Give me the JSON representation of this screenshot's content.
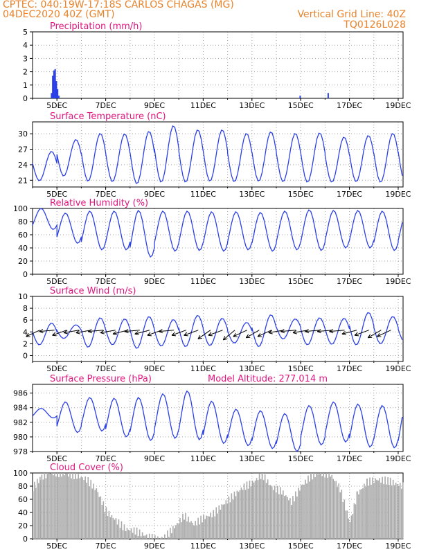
{
  "header": {
    "line1": "CPTEC:   040:19W-17:18S   CARLOS CHAGAS (MG)",
    "line2": "04DEC2020 40Z (GMT)",
    "grid_note": "Vertical Grid Line: 40Z",
    "code": "TQ0126L028"
  },
  "colors": {
    "header": "#e8822a",
    "title": "#e0157f",
    "line": "#2a3fe6",
    "cloud": "#a9a9a9",
    "arrow": "#000000"
  },
  "chart_data": [
    {
      "id": "precip",
      "type": "bar",
      "title": "Precipitation (mm/h)",
      "ylim": [
        0,
        5
      ],
      "yticks": [
        0,
        1,
        2,
        3,
        4,
        5
      ],
      "xlabels": [
        "5DEC",
        "7DEC",
        "9DEC",
        "11DEC",
        "13DEC",
        "15DEC",
        "17DEC",
        "19DEC"
      ],
      "x_range_days": [
        4.0,
        19.2
      ],
      "series": [
        {
          "values": [
            [
              4.75,
              0.4
            ],
            [
              4.8,
              1.7
            ],
            [
              4.85,
              2.1
            ],
            [
              4.9,
              2.2
            ],
            [
              4.95,
              1.3
            ],
            [
              5.0,
              0.7
            ],
            [
              5.05,
              0.2
            ],
            [
              14.95,
              0.2
            ],
            [
              16.1,
              0.4
            ]
          ]
        }
      ]
    },
    {
      "id": "temp",
      "type": "line",
      "title": "Surface Temperature (nC)",
      "ylim": [
        19.7,
        32.3
      ],
      "yticks": [
        21,
        24,
        27,
        30
      ],
      "xlabels": [
        "5DEC",
        "7DEC",
        "9DEC",
        "11DEC",
        "13DEC",
        "15DEC",
        "17DEC",
        "19DEC"
      ],
      "x_range_days": [
        4.0,
        19.2
      ],
      "series": [
        {
          "min": [
            20.9,
            21.8,
            20.8,
            20.7,
            20.3,
            20.6,
            20.6,
            20.8,
            20.7,
            20.8,
            20.7,
            20.6,
            20.6,
            20.7,
            20.6,
            20.7
          ],
          "max": [
            26.6,
            28.9,
            30.1,
            30.0,
            30.5,
            31.6,
            30.8,
            30.8,
            30.1,
            30.4,
            30.1,
            30.2,
            29.4,
            29.7,
            30.1,
            30.5
          ]
        }
      ]
    },
    {
      "id": "rh",
      "type": "line",
      "title": "Relative Humidity (%)",
      "ylim": [
        0,
        100
      ],
      "yticks": [
        0,
        20,
        40,
        60,
        80,
        100
      ],
      "xlabels": [
        "5DEC",
        "7DEC",
        "9DEC",
        "11DEC",
        "13DEC",
        "15DEC",
        "17DEC",
        "19DEC"
      ],
      "x_range_days": [
        4.0,
        19.2
      ],
      "series": [
        {
          "max": [
            100,
            93,
            96,
            96,
            97,
            96,
            96,
            95,
            95,
            94,
            96,
            98,
            97,
            97,
            96,
            95
          ],
          "min": [
            68,
            47,
            37,
            37,
            26,
            35,
            36,
            35,
            37,
            35,
            37,
            36,
            40,
            40,
            36,
            40
          ]
        }
      ]
    },
    {
      "id": "wind",
      "type": "line",
      "title": "Surface Wind (m/s)",
      "ylim": [
        -1,
        10
      ],
      "yticks": [
        0,
        2,
        4,
        6,
        8,
        10
      ],
      "xlabels": [
        "5DEC",
        "7DEC",
        "9DEC",
        "11DEC",
        "13DEC",
        "15DEC",
        "17DEC",
        "19DEC"
      ],
      "x_range_days": [
        4.0,
        19.2
      ],
      "series": [
        {
          "max": [
            5.5,
            5.2,
            6.4,
            6.2,
            6.6,
            6.1,
            6.8,
            6.3,
            5.6,
            6.9,
            6.2,
            6.4,
            6.3,
            7.3,
            6.6,
            6.0
          ],
          "min": [
            1.8,
            2.9,
            1.4,
            1.8,
            1.2,
            1.6,
            1.5,
            1.7,
            2.1,
            1.5,
            2.8,
            1.8,
            1.9,
            1.8,
            2.0,
            2.2
          ]
        }
      ]
    },
    {
      "id": "pres",
      "type": "line",
      "title": "Surface Pressure (hPa)",
      "subtitle": "Model Altitude: 277.014 m",
      "ylim": [
        978,
        987.2
      ],
      "yticks": [
        978,
        980,
        982,
        984,
        986
      ],
      "xlabels": [
        "5DEC",
        "7DEC",
        "9DEC",
        "11DEC",
        "13DEC",
        "15DEC",
        "17DEC",
        "19DEC"
      ],
      "x_range_days": [
        4.0,
        19.2
      ],
      "series": [
        {
          "max": [
            983.9,
            984.8,
            985.4,
            985.3,
            985.4,
            985.9,
            986.3,
            984.9,
            983.8,
            983.6,
            983.2,
            984.3,
            984.8,
            984.5,
            984.3,
            984.7
          ],
          "min": [
            982.6,
            980.6,
            980.8,
            980.0,
            979.5,
            979.8,
            979.6,
            979.1,
            978.8,
            978.4,
            978.0,
            978.9,
            979.3,
            978.6,
            978.5,
            978.1
          ]
        }
      ]
    },
    {
      "id": "cloud",
      "type": "bar",
      "title": "Cloud Cover (%)",
      "ylim": [
        0,
        100
      ],
      "yticks": [
        0,
        20,
        40,
        60,
        80,
        100
      ],
      "xlabels": [
        "5DEC",
        "7DEC",
        "9DEC",
        "11DEC",
        "13DEC",
        "15DEC",
        "17DEC",
        "19DEC"
      ],
      "x_range_days": [
        4.0,
        19.2
      ],
      "series": [
        {
          "values": [
            [
              4.0,
              78
            ],
            [
              4.3,
              92
            ],
            [
              4.6,
              100
            ],
            [
              5.0,
              100
            ],
            [
              5.4,
              98
            ],
            [
              5.8,
              96
            ],
            [
              6.2,
              90
            ],
            [
              6.6,
              75
            ],
            [
              7.0,
              42
            ],
            [
              7.4,
              28
            ],
            [
              7.8,
              15
            ],
            [
              8.2,
              12
            ],
            [
              8.6,
              5
            ],
            [
              9.0,
              0
            ],
            [
              9.4,
              2
            ],
            [
              9.8,
              18
            ],
            [
              10.2,
              35
            ],
            [
              10.6,
              22
            ],
            [
              11.0,
              32
            ],
            [
              11.4,
              38
            ],
            [
              11.8,
              52
            ],
            [
              12.2,
              65
            ],
            [
              12.6,
              78
            ],
            [
              13.0,
              85
            ],
            [
              13.4,
              98
            ],
            [
              13.8,
              78
            ],
            [
              14.2,
              72
            ],
            [
              14.6,
              56
            ],
            [
              15.0,
              80
            ],
            [
              15.4,
              95
            ],
            [
              15.8,
              100
            ],
            [
              16.2,
              98
            ],
            [
              16.6,
              76
            ],
            [
              17.0,
              25
            ],
            [
              17.3,
              68
            ],
            [
              17.7,
              86
            ],
            [
              18.1,
              90
            ],
            [
              18.6,
              88
            ],
            [
              19.0,
              82
            ],
            [
              19.2,
              80
            ]
          ]
        }
      ]
    }
  ],
  "wind_arrows": [
    [
      4.3,
      205
    ],
    [
      4.9,
      185
    ],
    [
      5.4,
      200
    ],
    [
      5.9,
      190
    ],
    [
      6.4,
      190
    ],
    [
      6.9,
      185
    ],
    [
      7.4,
      190
    ],
    [
      7.9,
      195
    ],
    [
      8.4,
      185
    ],
    [
      8.8,
      195
    ],
    [
      9.3,
      200
    ],
    [
      9.8,
      185
    ],
    [
      10.3,
      200
    ],
    [
      10.8,
      200
    ],
    [
      11.3,
      215
    ],
    [
      11.8,
      200
    ],
    [
      12.3,
      220
    ],
    [
      12.8,
      205
    ],
    [
      13.3,
      210
    ],
    [
      13.8,
      205
    ],
    [
      14.3,
      190
    ],
    [
      14.8,
      185
    ],
    [
      15.3,
      190
    ],
    [
      15.8,
      185
    ],
    [
      16.3,
      185
    ],
    [
      16.8,
      185
    ],
    [
      17.3,
      195
    ],
    [
      17.8,
      200
    ],
    [
      18.3,
      210
    ],
    [
      18.7,
      205
    ]
  ]
}
